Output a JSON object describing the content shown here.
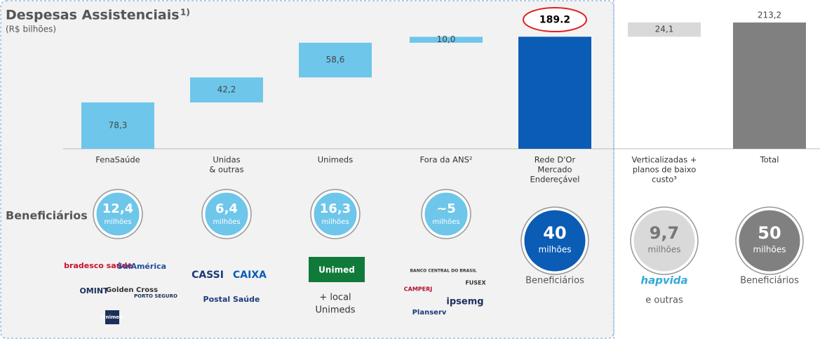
{
  "chart_data": {
    "type": "waterfall",
    "title": "Despesas Assistenciais",
    "title_note": "1)",
    "subtitle": "(R$ bilhões)",
    "categories": [
      [
        "FenaSaúde"
      ],
      [
        "Unidas",
        "& outras"
      ],
      [
        "Unimeds"
      ],
      [
        "Fora da ANS²"
      ],
      [
        "Rede D'Or",
        "Mercado",
        "Endereçável"
      ],
      [
        "Verticalizadas +",
        "planos de baixo",
        "custo³"
      ],
      [
        "Total"
      ]
    ],
    "measures": [
      "relative",
      "relative",
      "relative",
      "relative",
      "total",
      "relative",
      "total"
    ],
    "values": [
      78.3,
      42.2,
      58.6,
      10.0,
      189.2,
      24.1,
      213.2
    ],
    "value_labels": [
      "78,3",
      "42,2",
      "58,6",
      "10,0",
      "189.2",
      "24,1",
      "213,2"
    ],
    "colors": [
      "#6ec6ea",
      "#6ec6ea",
      "#6ec6ea",
      "#6ec6ea",
      "#0b5cb5",
      "#d9d9d9",
      "#808080"
    ]
  },
  "beneficiaries": {
    "label": "Beneficiários",
    "items": [
      {
        "value": "12,4",
        "unit": "milhões",
        "color": "#6ec6ea"
      },
      {
        "value": "6,4",
        "unit": "milhões",
        "color": "#6ec6ea"
      },
      {
        "value": "16,3",
        "unit": "milhões",
        "color": "#6ec6ea"
      },
      {
        "value": "~5",
        "unit": "milhões",
        "color": "#6ec6ea"
      },
      {
        "value": "40",
        "unit": "milhões",
        "color": "#0b5cb5",
        "caption": [
          "Beneficiários"
        ]
      },
      {
        "value": "9,7",
        "unit": "milhões",
        "color": "#d9d9d9",
        "caption": [
          "e outras"
        ]
      },
      {
        "value": "50",
        "unit": "milhões",
        "color": "#808080",
        "caption": [
          "Beneficiários"
        ]
      }
    ]
  },
  "logos": [
    [
      "bradesco saúde",
      "SulAmérica",
      "OMINT",
      "Golden Cross",
      "PORTO SEGURO",
      "Unimed"
    ],
    [
      "CASSI",
      "CAIXA",
      "Postal Saúde"
    ],
    [
      "Unimed",
      "+ local",
      "Unimeds"
    ],
    [
      "BANCO CENTRAL DO BRASIL",
      "FUSEX",
      "CAMPERJ",
      "ipsemg",
      "Planserv"
    ],
    [],
    [
      "hapvida"
    ],
    []
  ]
}
